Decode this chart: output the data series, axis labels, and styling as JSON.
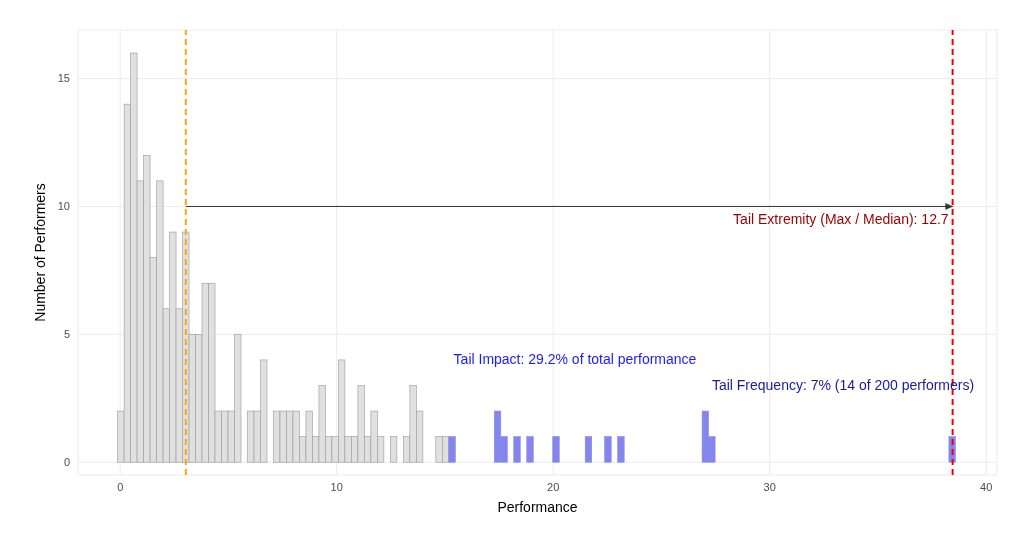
{
  "chart_data": {
    "type": "histogram",
    "xlabel": "Performance",
    "ylabel": "Number of Performers",
    "bins": [
      -0.12,
      0.18,
      0.48,
      0.78,
      1.08,
      1.38,
      1.68,
      1.98,
      2.28,
      2.58,
      2.88,
      3.18,
      3.48,
      3.78,
      4.08,
      4.38,
      4.68,
      4.98,
      5.28,
      5.58,
      5.88,
      6.18,
      6.48,
      6.78,
      7.08,
      7.38,
      7.68,
      7.98,
      8.28,
      8.58,
      8.88,
      9.18,
      9.48,
      9.78,
      10.08,
      10.38,
      10.68,
      10.98,
      11.28,
      11.58,
      11.88,
      12.18,
      12.48,
      12.78,
      13.08,
      13.38,
      13.68,
      13.98,
      14.28,
      14.58,
      14.88,
      15.18,
      15.48,
      15.78,
      16.08,
      16.38,
      16.68,
      16.98,
      17.28,
      17.58,
      17.88,
      18.18,
      18.48,
      18.78,
      19.08,
      19.38,
      19.68,
      19.98,
      20.28,
      20.58,
      20.88,
      21.18,
      21.48,
      21.78,
      22.08,
      22.38,
      22.68,
      22.98,
      23.28,
      23.58,
      23.88,
      24.18,
      24.48,
      24.78,
      25.08,
      25.38,
      25.68,
      25.98,
      26.28,
      26.58,
      26.88,
      27.18,
      27.48,
      27.78,
      28.08,
      28.38,
      28.68,
      28.98,
      29.28,
      29.58,
      29.88,
      30.18,
      30.48,
      30.78,
      31.08,
      31.38,
      31.68,
      31.98,
      32.28,
      32.58,
      32.88,
      33.18,
      33.48,
      33.78,
      34.08,
      34.38,
      34.68,
      34.98,
      35.28,
      35.58,
      35.88,
      36.18,
      36.48,
      36.78,
      37.08,
      37.38,
      37.68,
      37.98,
      38.28,
      38.58
    ],
    "values": [
      2,
      14,
      16,
      11,
      12,
      8,
      11,
      6,
      9,
      6,
      9,
      5,
      5,
      7,
      7,
      2,
      2,
      2,
      5,
      0,
      2,
      2,
      4,
      0,
      2,
      2,
      2,
      2,
      1,
      2,
      1,
      3,
      1,
      1,
      4,
      1,
      1,
      3,
      1,
      2,
      1,
      0,
      1,
      0,
      1,
      3,
      2,
      0,
      0,
      1,
      1,
      1,
      0,
      0,
      0,
      0,
      0,
      0,
      2,
      1,
      0,
      1,
      0,
      1,
      0,
      0,
      0,
      1,
      0,
      0,
      0,
      0,
      1,
      0,
      0,
      1,
      0,
      1,
      0,
      0,
      0,
      0,
      0,
      0,
      0,
      0,
      0,
      0,
      0,
      0,
      2,
      1,
      0,
      0,
      0,
      0,
      0,
      0,
      0,
      0,
      0,
      0,
      0,
      0,
      0,
      0,
      0,
      0,
      0,
      0,
      0,
      0,
      0,
      0,
      0,
      0,
      0,
      0,
      0,
      0,
      0,
      0,
      0,
      0,
      0,
      0,
      0,
      0,
      1
    ],
    "colors": [
      "#e0e0e0",
      "#e0e0e0",
      "#e0e0e0",
      "#e0e0e0",
      "#e0e0e0",
      "#e0e0e0",
      "#e0e0e0",
      "#e0e0e0",
      "#e0e0e0",
      "#e0e0e0",
      "#e0e0e0",
      "#e0e0e0",
      "#e0e0e0",
      "#e0e0e0",
      "#e0e0e0",
      "#e0e0e0",
      "#e0e0e0",
      "#e0e0e0",
      "#e0e0e0",
      "#e0e0e0",
      "#e0e0e0",
      "#e0e0e0",
      "#e0e0e0",
      "#e0e0e0",
      "#e0e0e0",
      "#e0e0e0",
      "#e0e0e0",
      "#e0e0e0",
      "#e0e0e0",
      "#e0e0e0",
      "#e0e0e0",
      "#e0e0e0",
      "#e0e0e0",
      "#e0e0e0",
      "#e0e0e0",
      "#e0e0e0",
      "#e0e0e0",
      "#e0e0e0",
      "#e0e0e0",
      "#e0e0e0",
      "#e0e0e0",
      "#e0e0e0",
      "#e0e0e0",
      "#e0e0e0",
      "#e0e0e0",
      "#e0e0e0",
      "#e0e0e0",
      "#e0e0e0",
      "#e0e0e0",
      "#e0e0e0",
      "#e0e0e0",
      "#8585ee",
      "#8585ee",
      "#8585ee",
      "#8585ee",
      "#8585ee",
      "#8585ee",
      "#8585ee",
      "#8585ee",
      "#8585ee",
      "#8585ee",
      "#8585ee",
      "#8585ee",
      "#8585ee",
      "#8585ee",
      "#8585ee",
      "#8585ee",
      "#8585ee",
      "#8585ee",
      "#8585ee",
      "#8585ee",
      "#8585ee",
      "#8585ee",
      "#8585ee",
      "#8585ee",
      "#8585ee",
      "#8585ee",
      "#8585ee",
      "#8585ee",
      "#8585ee",
      "#8585ee",
      "#8585ee",
      "#8585ee",
      "#8585ee",
      "#8585ee",
      "#8585ee",
      "#8585ee",
      "#8585ee",
      "#8585ee",
      "#8585ee",
      "#8585ee",
      "#8585ee",
      "#8585ee",
      "#8585ee",
      "#8585ee",
      "#8585ee",
      "#8585ee",
      "#8585ee",
      "#8585ee",
      "#8585ee",
      "#8585ee",
      "#8585ee",
      "#8585ee",
      "#8585ee",
      "#8585ee",
      "#8585ee",
      "#8585ee",
      "#8585ee",
      "#8585ee",
      "#8585ee",
      "#8585ee",
      "#8585ee",
      "#8585ee",
      "#8585ee",
      "#8585ee",
      "#8585ee",
      "#8585ee",
      "#8585ee",
      "#8585ee",
      "#8585ee",
      "#8585ee",
      "#8585ee",
      "#8585ee",
      "#8585ee",
      "#8585ee",
      "#8585ee",
      "#8585ee",
      "#8585ee",
      "#8585ee"
    ],
    "series": [
      {
        "type": "line",
        "x": [
          3.03,
          38.45
        ],
        "values": [
          10,
          10
        ],
        "color": "#333333"
      }
    ],
    "xlim": [
      -1.95,
      40.5
    ],
    "xticks": [
      0,
      10,
      20,
      30,
      40
    ],
    "ylim": [
      -0.5,
      16.9
    ],
    "yticks": [
      0,
      5,
      10,
      15
    ],
    "grid": true,
    "ref_lines": [
      {
        "axis": "x",
        "value": 3.03,
        "color": "#ffa500",
        "line_style": "dashed"
      },
      {
        "axis": "x",
        "value": 38.45,
        "color": "#ee0000",
        "line_style": "dashed"
      }
    ],
    "annotations": [
      {
        "text": "Tail Extremity (Max / Median): 12.7",
        "x": 38.45,
        "y": 10
      },
      "Tail Impact: 29.2% of total performance",
      "Tail Frequency: 7% (14 of 200 performers)"
    ]
  }
}
